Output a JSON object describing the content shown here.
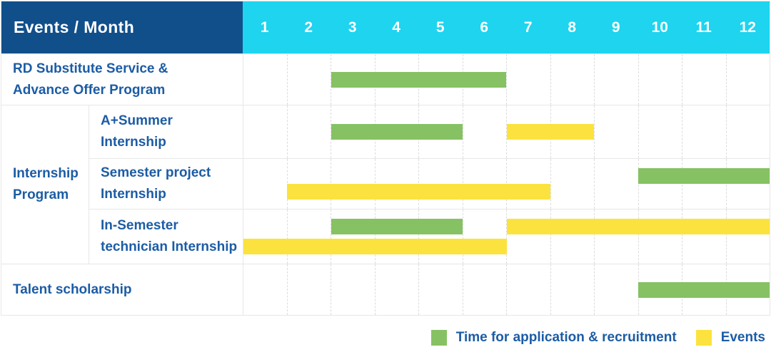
{
  "header": {
    "corner_label": "Events / Month",
    "months": [
      "1",
      "2",
      "3",
      "4",
      "5",
      "6",
      "7",
      "8",
      "9",
      "10",
      "11",
      "12"
    ]
  },
  "legend": {
    "items": [
      {
        "label": "Time for application & recruitment",
        "color": "#86C263"
      },
      {
        "label": "Events",
        "color": "#FCE23E"
      }
    ]
  },
  "colors": {
    "header_bg": "#114F8B",
    "months_bg": "#1ED4EF",
    "header_text": "#FFFFFF",
    "label_text": "#1C5CA5",
    "bar_green": "#86C263",
    "bar_yellow": "#FCE23E",
    "grid_line": "#E7E7E7",
    "grid_dash": "#DCDCDC"
  },
  "chart_data": {
    "type": "gantt",
    "x_axis": {
      "label": "Month",
      "ticks": [
        1,
        2,
        3,
        4,
        5,
        6,
        7,
        8,
        9,
        10,
        11,
        12
      ],
      "range": [
        1,
        12
      ]
    },
    "legend_entries": [
      "Time for application & recruitment",
      "Events"
    ],
    "group_label_lines": [
      "Internship",
      "Program"
    ],
    "rows": [
      {
        "group": "",
        "label": "RD Substitute Service & Advance Offer Program",
        "label_lines": [
          "RD Substitute Service &",
          "Advance Offer Program"
        ],
        "bars": [
          {
            "series": "Time for application & recruitment",
            "color": "green",
            "start_month": 3,
            "end_month": 6,
            "band": "center"
          }
        ]
      },
      {
        "group": "Internship Program",
        "label": "A+Summer Internship",
        "label_lines": [
          "A+Summer",
          "Internship"
        ],
        "bars": [
          {
            "series": "Time for application & recruitment",
            "color": "green",
            "start_month": 3,
            "end_month": 5,
            "band": "center"
          },
          {
            "series": "Events",
            "color": "yellow",
            "start_month": 7,
            "end_month": 8,
            "band": "center"
          }
        ]
      },
      {
        "group": "Internship Program",
        "label": "Semester project Internship",
        "label_lines": [
          "Semester project",
          "Internship"
        ],
        "bars": [
          {
            "series": "Time for application & recruitment",
            "color": "green",
            "start_month": 10,
            "end_month": 12,
            "band": "top"
          },
          {
            "series": "Events",
            "color": "yellow",
            "start_month": 2,
            "end_month": 7,
            "band": "bottom"
          }
        ]
      },
      {
        "group": "Internship Program",
        "label": "In-Semester technician Internship",
        "label_lines": [
          "In-Semester",
          "technician Internship"
        ],
        "bars": [
          {
            "series": "Time for application & recruitment",
            "color": "green",
            "start_month": 3,
            "end_month": 5,
            "band": "top"
          },
          {
            "series": "Events",
            "color": "yellow",
            "start_month": 7,
            "end_month": 12,
            "band": "top"
          },
          {
            "series": "Events",
            "color": "yellow",
            "start_month": 1,
            "end_month": 6,
            "band": "bottom"
          }
        ]
      },
      {
        "group": "",
        "label": "Talent scholarship",
        "label_lines": [
          "Talent scholarship"
        ],
        "bars": [
          {
            "series": "Time for application & recruitment",
            "color": "green",
            "start_month": 10,
            "end_month": 12,
            "band": "center"
          }
        ]
      }
    ]
  }
}
